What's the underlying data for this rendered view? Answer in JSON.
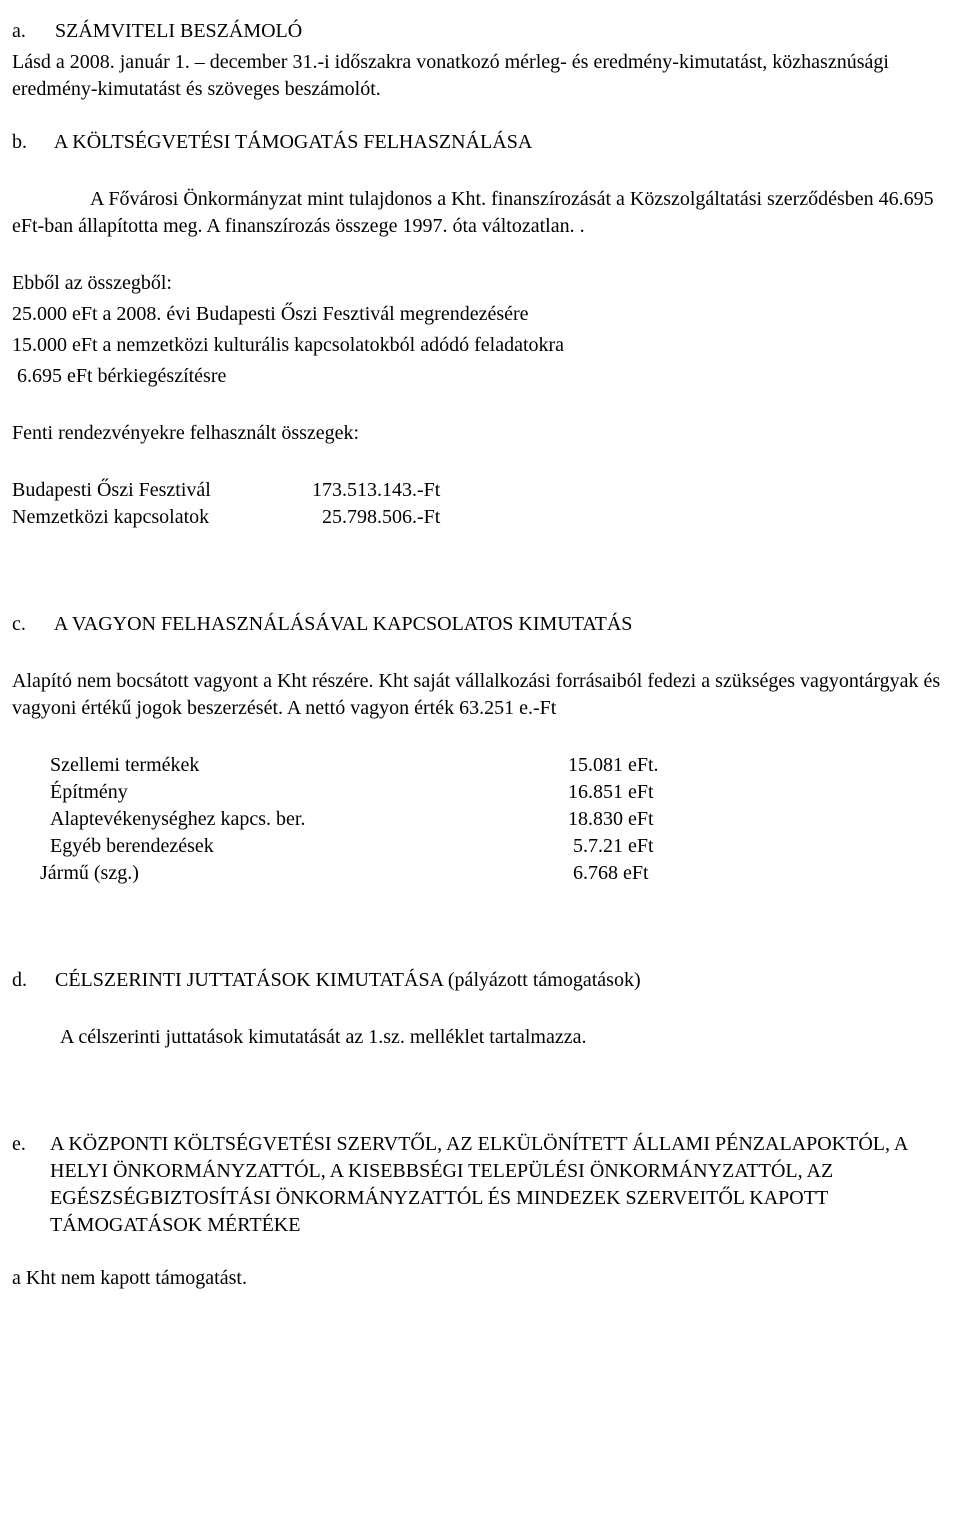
{
  "a": {
    "marker": "a.",
    "title": "SZÁMVITELI BESZÁMOLÓ",
    "p1": "Lásd a 2008. január 1. – december 31.-i időszakra vonatkozó mérleg- és eredmény-kimutatást, közhasznúsági eredmény-kimutatást és szöveges beszámolót."
  },
  "b": {
    "marker": "b.",
    "title": "A KÖLTSÉGVETÉSI TÁMOGATÁS FELHASZNÁLÁSA",
    "p1": "A Fővárosi Önkormányzat mint tulajdonos a Kht. finanszírozását a Közszolgáltatási  szerződésben 46.695 eFt-ban állapította meg. A finanszírozás összege 1997. óta  változatlan. .",
    "breakdown_title": "Ebből az összegből:",
    "line1": "25.000 eFt a 2008. évi Budapesti Őszi Fesztivál megrendezésére",
    "line2": "15.000 eFt a nemzetközi kulturális kapcsolatokból adódó feladatokra",
    "line3": " 6.695 eFt bérkiegészítésre",
    "used_title": "Fenti rendezvényekre felhasznált összegek:",
    "row1_label": "Budapesti Őszi Fesztivál",
    "row1_value": "173.513.143.-Ft",
    "row2_label": "Nemzetközi kapcsolatok",
    "row2_value": "  25.798.506.-Ft"
  },
  "c": {
    "marker": "c.",
    "title": "A VAGYON FELHASZNÁLÁSÁVAL KAPCSOLATOS KIMUTATÁS",
    "p1": "Alapító nem bocsátott vagyont a Kht részére. Kht saját vállalkozási forrásaiból fedezi a szükséges vagyontárgyak  és vagyoni értékű jogok beszerzését. A nettó vagyon érték 63.251 e.-Ft",
    "assets": [
      {
        "label": "Szellemi termékek",
        "value": "15.081 eFt."
      },
      {
        "label": "Építmény",
        "value": "16.851 eFt"
      },
      {
        "label": "Alaptevékenységhez kapcs. ber.",
        "value": "18.830 eFt"
      },
      {
        "label": "Egyéb berendezések",
        "value": " 5.7.21 eFt"
      },
      {
        "label": "Jármű (szg.)",
        "value": " 6.768 eFt",
        "outdent": true
      }
    ]
  },
  "d": {
    "marker": "d.",
    "title": "CÉLSZERINTI JUTTATÁSOK KIMUTATÁSA  (pályázott támogatások)",
    "p1": "A célszerinti juttatások kimutatását az 1.sz. melléklet tartalmazza."
  },
  "e": {
    "marker": "e.",
    "title": "A  KÖZPONTI KÖLTSÉGVETÉSI SZERVTŐL, AZ ELKÜLÖNÍTETT ÁLLAMI PÉNZALAPOKTÓL, A HELYI ÖNKORMÁNYZATTÓL, A KISEBBSÉGI TELEPÜLÉSI ÖNKORMÁNYZATTÓL, AZ EGÉSZSÉGBIZTOSÍTÁSI ÖNKORMÁNYZATTÓL ÉS MINDEZEK SZERVEITŐL KAPOTT TÁMOGATÁSOK MÉRTÉKE",
    "p1": "a  Kht nem kapott támogatást."
  }
}
